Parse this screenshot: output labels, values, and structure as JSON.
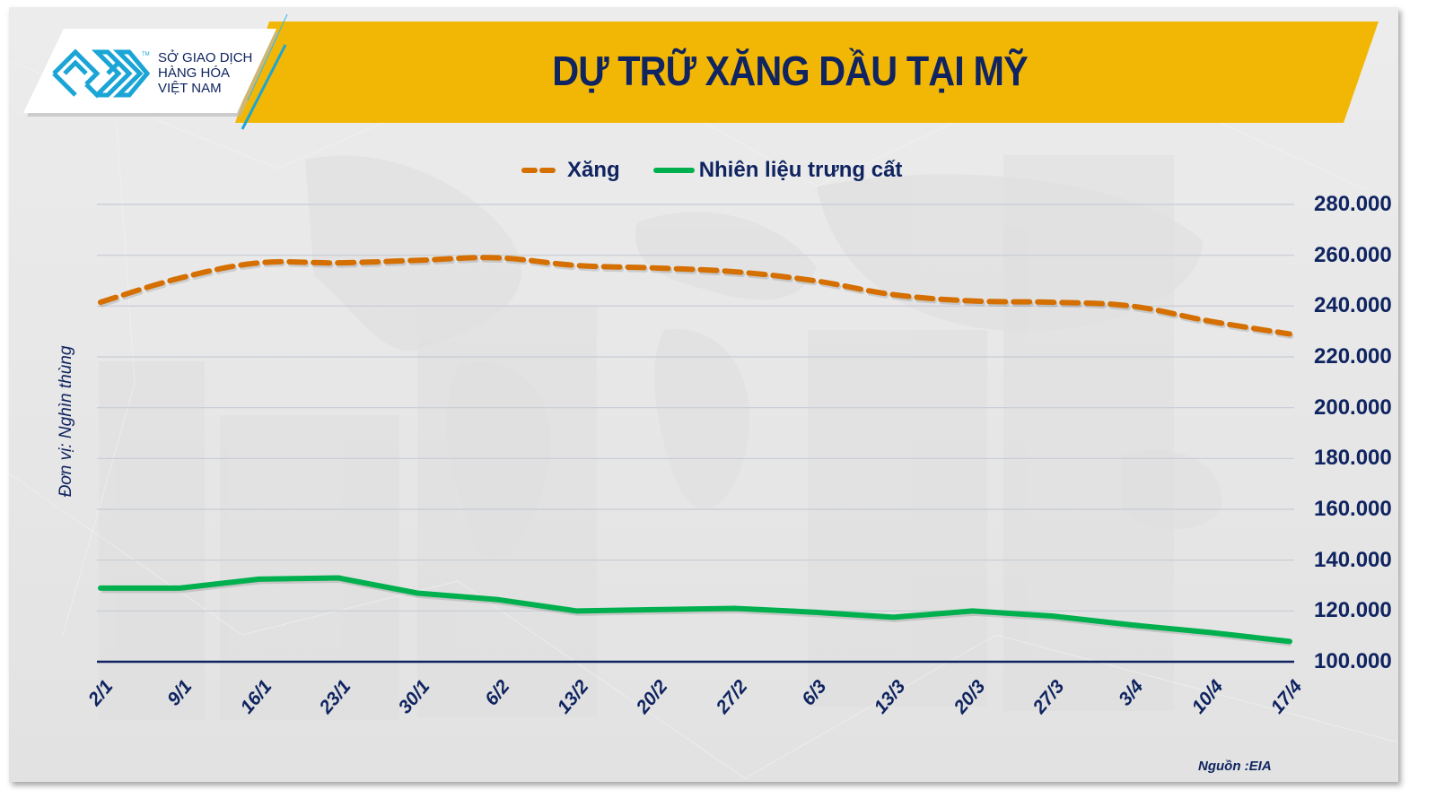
{
  "header": {
    "title": "DỰ TRỮ XĂNG DẦU TẠI MỸ",
    "logo": {
      "line1": "SỞ GIAO DỊCH",
      "line2": "HÀNG HÓA",
      "line3": "VIỆT NAM",
      "trademark": "TM",
      "icon": "mxv-logo-icon"
    },
    "banner_color": "#f2b705",
    "title_color": "#0f2460"
  },
  "legend": {
    "items": [
      {
        "label": "Xăng",
        "color": "#d46f00",
        "style": "dashed"
      },
      {
        "label": "Nhiên liệu trưng cất",
        "color": "#00b04f",
        "style": "solid"
      }
    ]
  },
  "axis": {
    "y_title": "Đơn vị: Nghìn thùng",
    "y_ticks": [
      "280.000",
      "260.000",
      "240.000",
      "220.000",
      "200.000",
      "180.000",
      "160.000",
      "140.000",
      "120.000",
      "100.000"
    ],
    "x_ticks": [
      "2/1",
      "9/1",
      "16/1",
      "23/1",
      "30/1",
      "6/2",
      "13/2",
      "20/2",
      "27/2",
      "6/3",
      "13/3",
      "20/3",
      "27/3",
      "3/4",
      "10/4",
      "17/4"
    ]
  },
  "footer": {
    "source": "Nguồn :EIA"
  },
  "chart_data": {
    "type": "line",
    "title": "DỰ TRỮ XĂNG DẦU TẠI MỸ",
    "xlabel": "",
    "ylabel": "Đơn vị: Nghìn thùng",
    "ylim": [
      100000,
      280000
    ],
    "y_axis_position": "right",
    "grid": true,
    "legend_position": "top",
    "categories": [
      "2/1",
      "9/1",
      "16/1",
      "23/1",
      "30/1",
      "6/2",
      "13/2",
      "20/2",
      "27/2",
      "6/3",
      "13/3",
      "20/3",
      "27/3",
      "3/4",
      "10/4",
      "17/4"
    ],
    "series": [
      {
        "name": "Xăng",
        "color": "#d46f00",
        "style": "dashed",
        "values": [
          241500,
          251000,
          257000,
          257000,
          258000,
          259000,
          256000,
          255000,
          253500,
          250000,
          244500,
          242000,
          241500,
          240000,
          234000,
          229000
        ]
      },
      {
        "name": "Nhiên liệu trưng cất",
        "color": "#00b04f",
        "style": "solid",
        "values": [
          129000,
          129000,
          132500,
          133000,
          127000,
          124500,
          120000,
          120500,
          121000,
          119500,
          117500,
          120000,
          118000,
          114500,
          111500,
          108000
        ]
      }
    ],
    "source": "Nguồn :EIA"
  }
}
